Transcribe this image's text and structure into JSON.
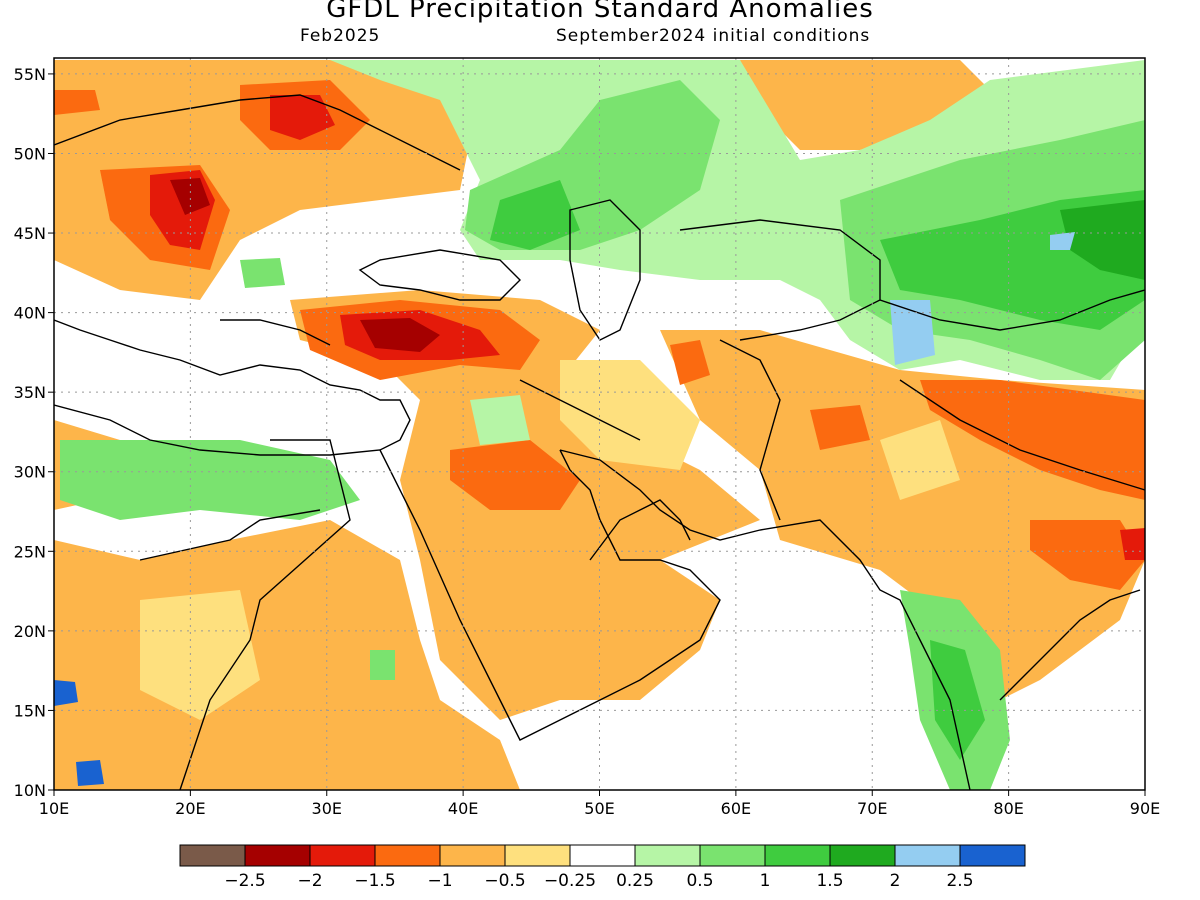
{
  "title": "GFDL Precipitation Standard Anomalies",
  "subtitle_left": "Feb2025",
  "subtitle_right": "September2024 initial conditions",
  "map": {
    "lon_range": [
      10,
      90
    ],
    "lat_range": [
      10,
      56
    ],
    "lon_ticks": [
      "10E",
      "20E",
      "30E",
      "40E",
      "50E",
      "60E",
      "70E",
      "80E",
      "90E"
    ],
    "lat_ticks": [
      "10N",
      "15N",
      "20N",
      "25N",
      "30N",
      "35N",
      "40N",
      "45N",
      "50N",
      "55N"
    ],
    "grid": "dotted",
    "region": "Middle East, Central Asia and South Asia"
  },
  "colorbar": {
    "colors": [
      "#7a5a49",
      "#a50000",
      "#e41a0a",
      "#fb6a10",
      "#fdb54a",
      "#fee07e",
      "#ffffff",
      "#b6f5a6",
      "#7ae36f",
      "#3fcc3f",
      "#1faa1f",
      "#94cdf1",
      "#1962d0"
    ],
    "labels": [
      "-2.5",
      "-2",
      "-1.5",
      "-1",
      "-0.5",
      "-0.25",
      "0.25",
      "0.5",
      "1",
      "1.5",
      "2",
      "2.5"
    ]
  }
}
